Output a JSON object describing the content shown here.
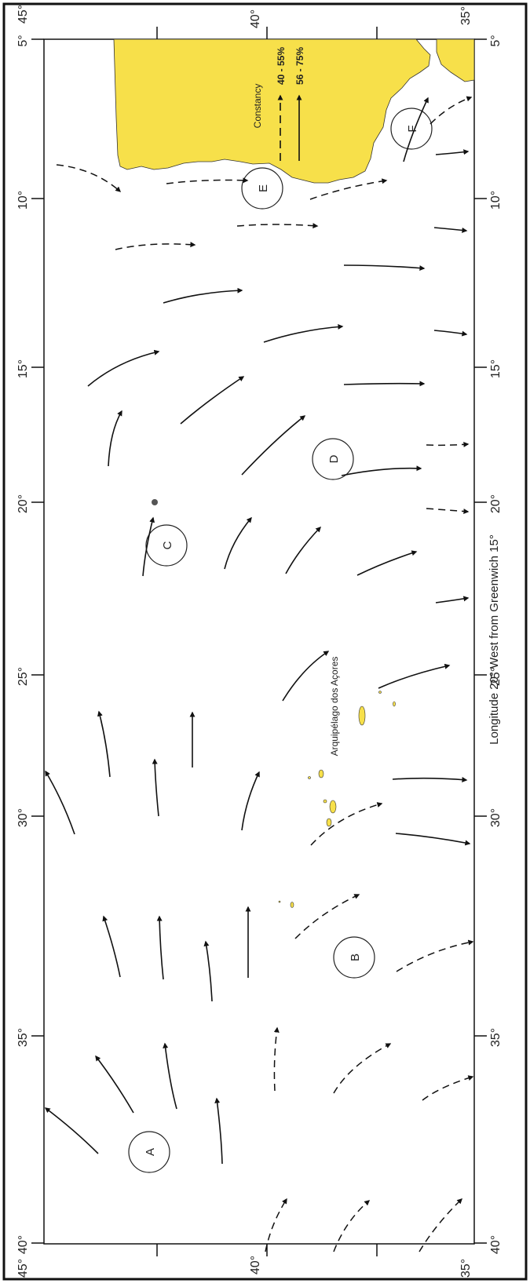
{
  "map": {
    "x_axis_title": "Longitude 20° West from Greenwich 15°",
    "lon_ticks_top": [
      "5°",
      "10°",
      "15°",
      "20°",
      "25°",
      "30°",
      "35°",
      "40°"
    ],
    "lon_ticks_bottom": [
      "5°",
      "10°",
      "15°",
      "20°",
      "25°",
      "30°",
      "35°",
      "40°"
    ],
    "corner_top_left": "45°",
    "corner_top_right": "35°",
    "corner_bottom_left": "45°",
    "corner_bottom_right": "35°",
    "lat_mid_left": "40°",
    "lat_mid_right": "40°",
    "archipelago_label": "Arquipélago dos Açores",
    "legend": {
      "title": "Constancy",
      "dashed_label": "40 - 55%",
      "solid_label": "56 - 75%"
    },
    "regions": [
      "A",
      "B",
      "C",
      "D",
      "E",
      "F"
    ],
    "colors": {
      "land": "#f7e04a",
      "frame": "#111111",
      "arrow": "#111111",
      "background": "#ffffff"
    }
  }
}
